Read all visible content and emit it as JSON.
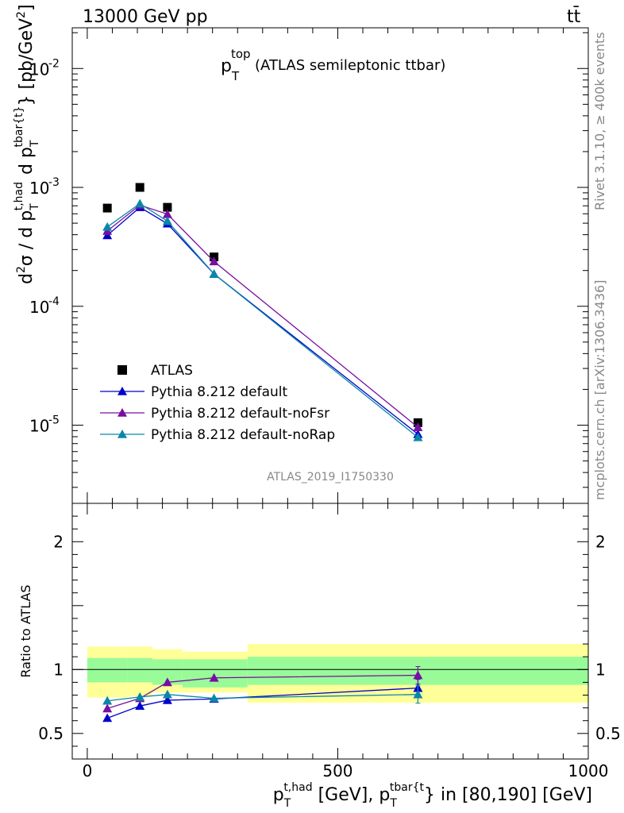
{
  "header": {
    "energy_label": "13000 GeV pp",
    "process_label": "tt̄"
  },
  "side_labels": {
    "rivet": "Rivet 3.1.10, ≥ 400k events",
    "site": "mcplots.cern.ch [arXiv:1306.3436]"
  },
  "chart_data": {
    "type": "line",
    "title_main": "p",
    "title_sub": "T",
    "title_sup": "top",
    "title_rest": "(ATLAS semileptonic ttbar)",
    "watermark": "ATLAS_2019_I1750330",
    "main_ylabel": "d²σ / d p_T^{t,had} d p_T^{tbar{t}} [pb/GeV²]",
    "ratio_ylabel": "Ratio to ATLAS",
    "xlabel": "p_T^{t,had} [GeV], p_T^{tbar{t}} in [80,190] [GeV]",
    "xlim": [
      -30,
      1000
    ],
    "xticks": [
      "0",
      "500",
      "1000"
    ],
    "xtick_values": [
      0,
      500,
      1000
    ],
    "main_ylim": [
      2.2e-06,
      0.022
    ],
    "main_yticks": [
      "10",
      "10",
      "10",
      "10"
    ],
    "main_ytick_exps": [
      "-5",
      "-4",
      "-3",
      "-2"
    ],
    "main_ytick_values": [
      1e-05,
      0.0001,
      0.001,
      0.01
    ],
    "ratio_ylim": [
      0.3,
      2.3
    ],
    "ratio_yticks": [
      "0.5",
      "1",
      "2"
    ],
    "ratio_ytick_values": [
      0.5,
      1,
      2
    ],
    "x": [
      40,
      105,
      160,
      253,
      660
    ],
    "bin_edges": [
      0,
      80,
      130,
      190,
      320,
      1000
    ],
    "band_inner": [
      [
        0.9,
        1.09
      ],
      [
        0.9,
        1.09
      ],
      [
        0.88,
        1.08
      ],
      [
        0.86,
        1.08
      ],
      [
        0.88,
        1.1
      ]
    ],
    "band_outer": [
      [
        0.78,
        1.18
      ],
      [
        0.79,
        1.18
      ],
      [
        0.82,
        1.16
      ],
      [
        0.82,
        1.14
      ],
      [
        0.74,
        1.2
      ]
    ],
    "series": [
      {
        "name": "ATLAS",
        "marker": "square",
        "color": "#000000",
        "values": [
          0.00067,
          0.001,
          0.00068,
          0.00026,
          1.05e-05
        ],
        "ratio": [
          1,
          1,
          1,
          1,
          1
        ]
      },
      {
        "name": "Pythia 8.212 default",
        "marker": "triangle",
        "color": "#0000cc",
        "values": [
          0.000395,
          0.00068,
          0.000495,
          0.000187,
          8.4e-06
        ],
        "ratio": [
          0.62,
          0.715,
          0.76,
          0.77,
          0.855
        ]
      },
      {
        "name": "Pythia 8.212 default-noFsr",
        "marker": "triangle",
        "color": "#7a0ea0",
        "values": [
          0.00043,
          0.00071,
          0.000595,
          0.000238,
          9.6e-06
        ],
        "ratio": [
          0.695,
          0.775,
          0.9,
          0.935,
          0.955
        ]
      },
      {
        "name": "Pythia 8.212 default-noRap",
        "marker": "triangle",
        "color": "#0a87a8",
        "values": [
          0.000465,
          0.00073,
          0.00052,
          0.000187,
          7.9e-06
        ],
        "ratio": [
          0.755,
          0.785,
          0.805,
          0.775,
          0.805
        ]
      }
    ],
    "colors": {
      "band_inner": "#98fb98",
      "band_outer": "#ffff99"
    }
  }
}
